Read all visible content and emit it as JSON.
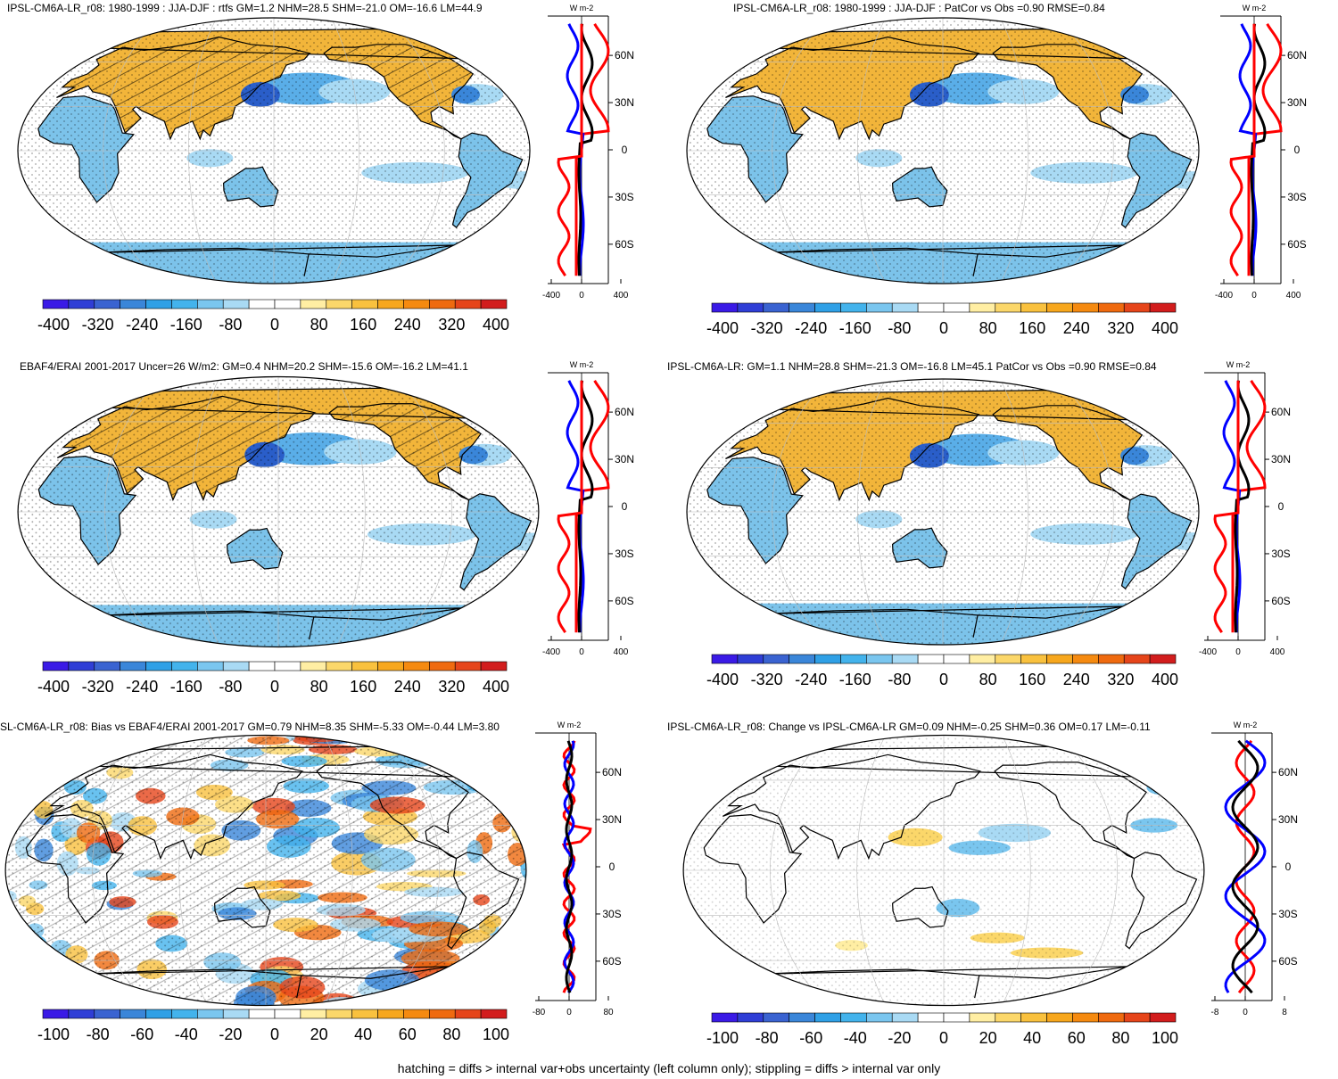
{
  "footer": "hatching = diffs > internal var+obs uncertainty (left column only); stippling = diffs > internal var only",
  "colors": {
    "land_warm": "#f2b53a",
    "ocean_cool": "#7cc3ea",
    "deep_blue": "#2a5ec9",
    "neutral": "#ffffff",
    "profile_nh": "#0000ff",
    "profile_sh": "#ff0000",
    "profile_mean": "#000000"
  },
  "colorbar": {
    "colors": [
      "#3a1ae6",
      "#2f3ed6",
      "#3a63d1",
      "#3a86d9",
      "#2fa0e6",
      "#43b3ec",
      "#7ac6ef",
      "#a9daf4",
      "#ffffff",
      "#ffffff",
      "#ffeea3",
      "#fbd76a",
      "#f9c13e",
      "#f7a71d",
      "#f58a10",
      "#ef6a0f",
      "#e6451a",
      "#d21d1d"
    ],
    "large": {
      "labels": [
        "-400",
        "-320",
        "-240",
        "-160",
        "-80",
        "0",
        "80",
        "160",
        "240",
        "320",
        "400"
      ]
    },
    "small": {
      "labels": [
        "-100",
        "-80",
        "-60",
        "-40",
        "-20",
        "0",
        "20",
        "40",
        "60",
        "80",
        "100"
      ]
    }
  },
  "panels": [
    {
      "id": "p1",
      "title": "IPSL-CM6A-LR_r08: 1980-1999 : JJA-DJF : rtfs GM=1.2 NHM=28.5 SHM=-21.0 OM=-16.6 LM=44.9",
      "profile_unit": "W m-2",
      "lat_labels": [
        "60N",
        "30N",
        "0",
        "30S",
        "60S"
      ],
      "x_ticks": [
        "-400",
        "0",
        "400"
      ],
      "colorbar": "large",
      "kind": "full"
    },
    {
      "id": "p2",
      "title": "IPSL-CM6A-LR_r08: 1980-1999 : JJA-DJF : PatCor vs Obs =0.90 RMSE=0.84",
      "profile_unit": "W m-2",
      "lat_labels": [
        "60N",
        "30N",
        "0",
        "30S",
        "60S"
      ],
      "x_ticks": [
        "-400",
        "0",
        "400"
      ],
      "colorbar": "large",
      "kind": "full"
    },
    {
      "id": "p3",
      "title": "EBAF4/ERAI 2001-2017 Uncer=26 W/m2: GM=0.4 NHM=20.2 SHM=-15.6 OM=-16.2 LM=41.1",
      "profile_unit": "W m-2",
      "lat_labels": [
        "60N",
        "30N",
        "0",
        "30S",
        "60S"
      ],
      "x_ticks": [
        "-400",
        "0",
        "400"
      ],
      "colorbar": "large",
      "kind": "full"
    },
    {
      "id": "p4",
      "title": "IPSL-CM6A-LR: GM=1.1 NHM=28.8 SHM=-21.3 OM=-16.8 LM=45.1 PatCor vs Obs =0.90 RMSE=0.84",
      "profile_unit": "W m-2",
      "lat_labels": [
        "60N",
        "30N",
        "0",
        "30S",
        "60S"
      ],
      "x_ticks": [
        "-400",
        "0",
        "400"
      ],
      "colorbar": "large",
      "kind": "full"
    },
    {
      "id": "p5",
      "title": "SL-CM6A-LR_r08: Bias vs EBAF4/ERAI 2001-2017 GM=0.79 NHM=8.35 SHM=-5.33 OM=-0.44 LM=3.80",
      "profile_unit": "W m-2",
      "lat_labels": [
        "60N",
        "30N",
        "0",
        "30S",
        "60S"
      ],
      "x_ticks": [
        "-80",
        "0",
        "80"
      ],
      "colorbar": "small",
      "kind": "bias"
    },
    {
      "id": "p6",
      "title": "IPSL-CM6A-LR_r08: Change vs IPSL-CM6A-LR GM=0.09 NHM=-0.25 SHM=0.36 OM=0.17 LM=-0.11",
      "profile_unit": "W m-2",
      "lat_labels": [
        "60N",
        "30N",
        "0",
        "30S",
        "60S"
      ],
      "x_ticks": [
        "-8",
        "0",
        "8"
      ],
      "colorbar": "small",
      "kind": "change"
    }
  ]
}
